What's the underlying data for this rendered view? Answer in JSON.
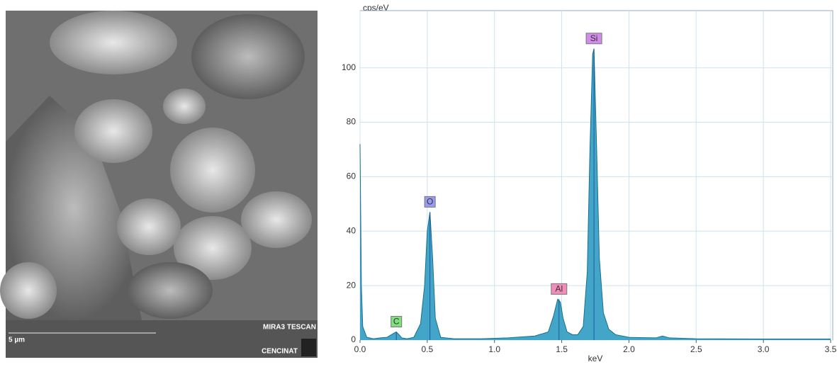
{
  "image": {
    "scale_label": "5 µm",
    "instrument": "MIRA3 TESCAN",
    "lab": "CENCINAT"
  },
  "chart_data": {
    "type": "area",
    "y_label": "cps/eV",
    "x_label": "keV",
    "x": [
      0,
      0.01,
      0.02,
      0.05,
      0.1,
      0.15,
      0.2,
      0.25,
      0.27,
      0.29,
      0.31,
      0.35,
      0.4,
      0.45,
      0.48,
      0.5,
      0.52,
      0.54,
      0.56,
      0.6,
      0.7,
      0.9,
      1.1,
      1.3,
      1.4,
      1.44,
      1.47,
      1.49,
      1.51,
      1.54,
      1.58,
      1.62,
      1.66,
      1.69,
      1.71,
      1.73,
      1.74,
      1.76,
      1.78,
      1.81,
      1.85,
      1.9,
      2.0,
      2.2,
      2.25,
      2.3,
      2.5,
      3.0,
      3.5
    ],
    "values": [
      72,
      20,
      5,
      1,
      0.5,
      0.8,
      1,
      2.5,
      3,
      2,
      0.8,
      0.5,
      1,
      6,
      20,
      40,
      47,
      30,
      8,
      1,
      0.5,
      0.5,
      0.8,
      1.5,
      3,
      9,
      15,
      14,
      8,
      3,
      2,
      2,
      5,
      25,
      70,
      105,
      107,
      70,
      30,
      10,
      4,
      2,
      1,
      0.8,
      1.5,
      0.8,
      0.5,
      0.4,
      0.4
    ],
    "color": "#2f9cc3",
    "xlim": [
      0,
      3.5
    ],
    "ylim": [
      0,
      121
    ],
    "xticks": [
      {
        "value": 0,
        "label": "0.0"
      },
      {
        "value": 0.5,
        "label": "0.5"
      },
      {
        "value": 1,
        "label": "1.0"
      },
      {
        "value": 1.5,
        "label": "1.5"
      },
      {
        "value": 2,
        "label": "2.0"
      },
      {
        "value": 2.5,
        "label": "2.5"
      },
      {
        "value": 3,
        "label": "3.0"
      },
      {
        "value": 3.5,
        "label": "3.5"
      }
    ],
    "yticks": [
      0,
      20,
      40,
      60,
      80,
      100
    ],
    "grid": true,
    "peaks": [
      {
        "label": "C",
        "x": 0.27,
        "y": 3,
        "color": "#7ee07e"
      },
      {
        "label": "O",
        "x": 0.52,
        "y": 47,
        "color": "#9a9af0"
      },
      {
        "label": "Al",
        "x": 1.48,
        "y": 15,
        "color": "#f28cb8"
      },
      {
        "label": "Si",
        "x": 1.74,
        "y": 107,
        "color": "#d08ce8"
      }
    ]
  }
}
